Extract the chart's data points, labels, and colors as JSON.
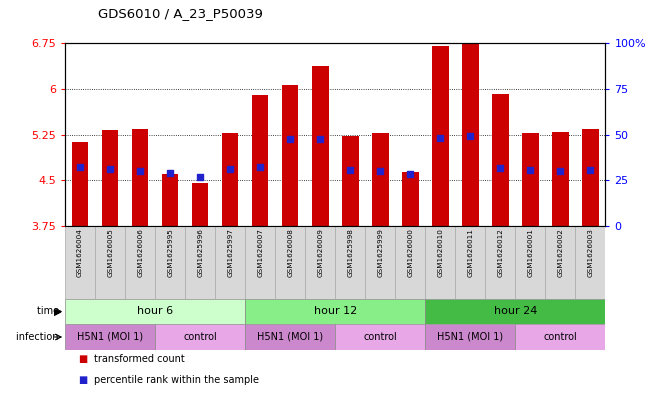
{
  "title": "GDS6010 / A_23_P50039",
  "samples": [
    "GSM1626004",
    "GSM1626005",
    "GSM1626006",
    "GSM1625995",
    "GSM1625996",
    "GSM1625997",
    "GSM1626007",
    "GSM1626008",
    "GSM1626009",
    "GSM1625998",
    "GSM1625999",
    "GSM1626000",
    "GSM1626010",
    "GSM1626011",
    "GSM1626012",
    "GSM1626001",
    "GSM1626002",
    "GSM1626003"
  ],
  "bar_values": [
    5.13,
    5.32,
    5.35,
    4.6,
    4.45,
    5.27,
    5.9,
    6.07,
    6.37,
    5.22,
    5.28,
    4.63,
    6.7,
    6.75,
    5.92,
    5.27,
    5.3,
    5.35
  ],
  "blue_dot_values": [
    4.72,
    4.68,
    4.65,
    4.62,
    4.55,
    4.68,
    4.72,
    5.17,
    5.18,
    4.67,
    4.65,
    4.6,
    5.2,
    5.22,
    4.7,
    4.67,
    4.65,
    4.67
  ],
  "y_min": 3.75,
  "y_max": 6.75,
  "y_ticks": [
    3.75,
    4.5,
    5.25,
    6.0,
    6.75
  ],
  "y_tick_labels": [
    "3.75",
    "4.5",
    "5.25",
    "6",
    "6.75"
  ],
  "right_y_tick_labels": [
    "0",
    "25",
    "50",
    "75",
    "100%"
  ],
  "bar_color": "#CC0000",
  "dot_color": "#2222CC",
  "bar_width": 0.55,
  "time_groups": [
    {
      "start": 0,
      "end": 5,
      "label": "hour 6",
      "color": "#ccffcc"
    },
    {
      "start": 6,
      "end": 11,
      "label": "hour 12",
      "color": "#88ee88"
    },
    {
      "start": 12,
      "end": 17,
      "label": "hour 24",
      "color": "#44bb44"
    }
  ],
  "infection_groups": [
    {
      "start": 0,
      "end": 2,
      "label": "H5N1 (MOI 1)",
      "color": "#cc88cc"
    },
    {
      "start": 3,
      "end": 5,
      "label": "control",
      "color": "#e8a8e8"
    },
    {
      "start": 6,
      "end": 8,
      "label": "H5N1 (MOI 1)",
      "color": "#cc88cc"
    },
    {
      "start": 9,
      "end": 11,
      "label": "control",
      "color": "#e8a8e8"
    },
    {
      "start": 12,
      "end": 14,
      "label": "H5N1 (MOI 1)",
      "color": "#cc88cc"
    },
    {
      "start": 15,
      "end": 17,
      "label": "control",
      "color": "#e8a8e8"
    }
  ],
  "legend_items": [
    "transformed count",
    "percentile rank within the sample"
  ],
  "legend_colors": [
    "#CC0000",
    "#2222CC"
  ],
  "cell_color": "#d8d8d8",
  "cell_edge_color": "#aaaaaa"
}
